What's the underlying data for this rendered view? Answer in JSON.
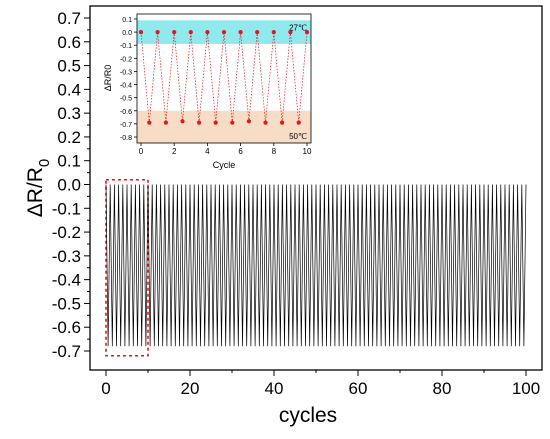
{
  "chart_data": [
    {
      "type": "line",
      "xlabel": "cycles",
      "ylabel": "ΔR/R",
      "ylabel_subscript": "0",
      "xlim": [
        0,
        100
      ],
      "ylim": [
        -0.75,
        0.72
      ],
      "x_ticks": [
        0,
        20,
        40,
        60,
        80,
        100
      ],
      "x_tick_labels": [
        "0",
        "20",
        "40",
        "60",
        "80",
        "100"
      ],
      "y_ticks": [
        0.7,
        0.6,
        0.5,
        0.4,
        0.3,
        0.2,
        0.1,
        0.0,
        -0.1,
        -0.2,
        -0.3,
        -0.4,
        -0.5,
        -0.6,
        -0.7
      ],
      "y_tick_labels": [
        "0.7",
        "0.6",
        "0.5",
        "0.4",
        "0.3",
        "0.2",
        "0.1",
        "0.0",
        "-0.1",
        "-0.2",
        "-0.3",
        "-0.4",
        "-0.5",
        "-0.6",
        "-0.7"
      ],
      "series": [
        {
          "cycles": 100,
          "high_value": 0.0,
          "low_value": -0.68,
          "color": "#000000"
        }
      ],
      "highlight_box": {
        "x_range": [
          0,
          10
        ],
        "y_range": [
          -0.72,
          0.02
        ],
        "color": "#e8141a",
        "style": "dashed"
      },
      "grid": false
    },
    {
      "type": "scatter",
      "role": "inset",
      "xlabel": "Cycle",
      "ylabel": "ΔR/R0",
      "xlim": [
        0,
        10
      ],
      "ylim": [
        -0.85,
        0.12
      ],
      "x_ticks": [
        0,
        2,
        4,
        6,
        8,
        10
      ],
      "x_tick_labels": [
        "0",
        "2",
        "4",
        "6",
        "8",
        "10"
      ],
      "y_ticks": [
        0.1,
        0.0,
        -0.1,
        -0.2,
        -0.3,
        -0.4,
        -0.5,
        -0.6,
        -0.7,
        -0.8
      ],
      "y_tick_labels": [
        "0.1",
        "0.0",
        "-0.1",
        "-0.2",
        "-0.3",
        "-0.4",
        "-0.5",
        "-0.6",
        "-0.7",
        "-0.8"
      ],
      "series": [
        {
          "x": [
            0,
            0.5,
            1,
            1.5,
            2,
            2.5,
            3,
            3.5,
            4,
            4.5,
            5,
            5.5,
            6,
            6.5,
            7,
            7.5,
            8,
            8.5,
            9,
            9.5,
            10
          ],
          "y": [
            0.0,
            -0.69,
            0.0,
            -0.69,
            0.0,
            -0.68,
            0.0,
            -0.69,
            0.0,
            -0.69,
            0.0,
            -0.69,
            0.0,
            -0.68,
            0.0,
            -0.69,
            0.0,
            -0.69,
            0.0,
            -0.69,
            0.0
          ],
          "color": "#e8141a",
          "line_style": "dotted"
        }
      ],
      "bands": [
        {
          "y_range": [
            -0.09,
            0.09
          ],
          "color": "#5fe0e6",
          "label": "27℃"
        },
        {
          "y_range": [
            -0.85,
            -0.6
          ],
          "color": "#f5d5b6",
          "label": "50℃"
        }
      ]
    }
  ]
}
